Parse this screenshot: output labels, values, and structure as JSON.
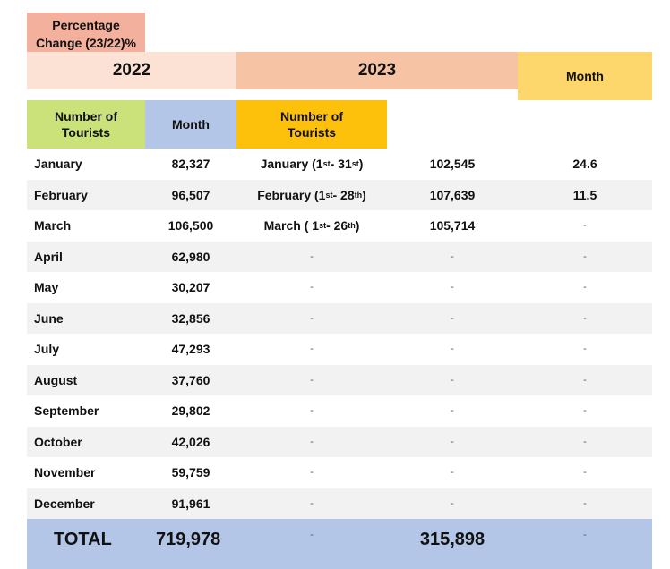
{
  "header": {
    "year_2022": "2022",
    "year_2023": "2023",
    "pct_line1": "Percentage",
    "pct_line2": "Change (23/22)%",
    "month_2022": "Month",
    "tourists_2022_line1": "Number of",
    "tourists_2022_line2": "Tourists",
    "month_2023": "Month",
    "tourists_2023_line1": "Number of",
    "tourists_2023_line2": "Tourists"
  },
  "rows": [
    {
      "m22": "January",
      "n22": "82,327",
      "m23a": "January  (1",
      "m23s1": "st",
      "m23b": "- 31",
      "m23s2": "st",
      "m23c": ")",
      "n23": "102,545",
      "pct": "24.6"
    },
    {
      "m22": "February",
      "n22": "96,507",
      "m23a": "February  (1",
      "m23s1": "st",
      "m23b": "- 28",
      "m23s2": "th",
      "m23c": ")",
      "n23": "107,639",
      "pct": "11.5"
    },
    {
      "m22": "March",
      "n22": "106,500",
      "m23a": "March ( 1",
      "m23s1": "st",
      "m23b": " - 26",
      "m23s2": "th",
      "m23c": ")",
      "n23": "105,714",
      "pct": "-"
    },
    {
      "m22": "April",
      "n22": "62,980",
      "m23": "-",
      "n23": "-",
      "pct": "-"
    },
    {
      "m22": "May",
      "n22": "30,207",
      "m23": "-",
      "n23": "-",
      "pct": "-"
    },
    {
      "m22": "June",
      "n22": "32,856",
      "m23": "-",
      "n23": "-",
      "pct": "-"
    },
    {
      "m22": "July",
      "n22": "47,293",
      "m23": "-",
      "n23": "-",
      "pct": "-"
    },
    {
      "m22": "August",
      "n22": "37,760",
      "m23": "-",
      "n23": "-",
      "pct": "-"
    },
    {
      "m22": "September",
      "n22": "29,802",
      "m23": "-",
      "n23": "-",
      "pct": "-"
    },
    {
      "m22": "October",
      "n22": "42,026",
      "m23": "-",
      "n23": "-",
      "pct": "-"
    },
    {
      "m22": "November",
      "n22": "59,759",
      "m23": "-",
      "n23": "-",
      "pct": "-"
    },
    {
      "m22": "December",
      "n22": "91,961",
      "m23": "-",
      "n23": "-",
      "pct": "-"
    }
  ],
  "total": {
    "label": "TOTAL",
    "n22": "719,978",
    "m23": "-",
    "n23": "315,898",
    "pct": "-"
  },
  "colors": {
    "year_2022_bg": "#fbe2d4",
    "year_2023_bg": "#f6c3a4",
    "pct_bg": "#f3b19d",
    "month_2022_bg": "#fdd76b",
    "tourists_2022_bg": "#cbe17a",
    "month_2023_bg": "#b4c6e7",
    "tourists_2023_bg": "#fdc00b",
    "total_bg": "#b4c6e7",
    "alt_row_bg": "#f2f2f2"
  }
}
